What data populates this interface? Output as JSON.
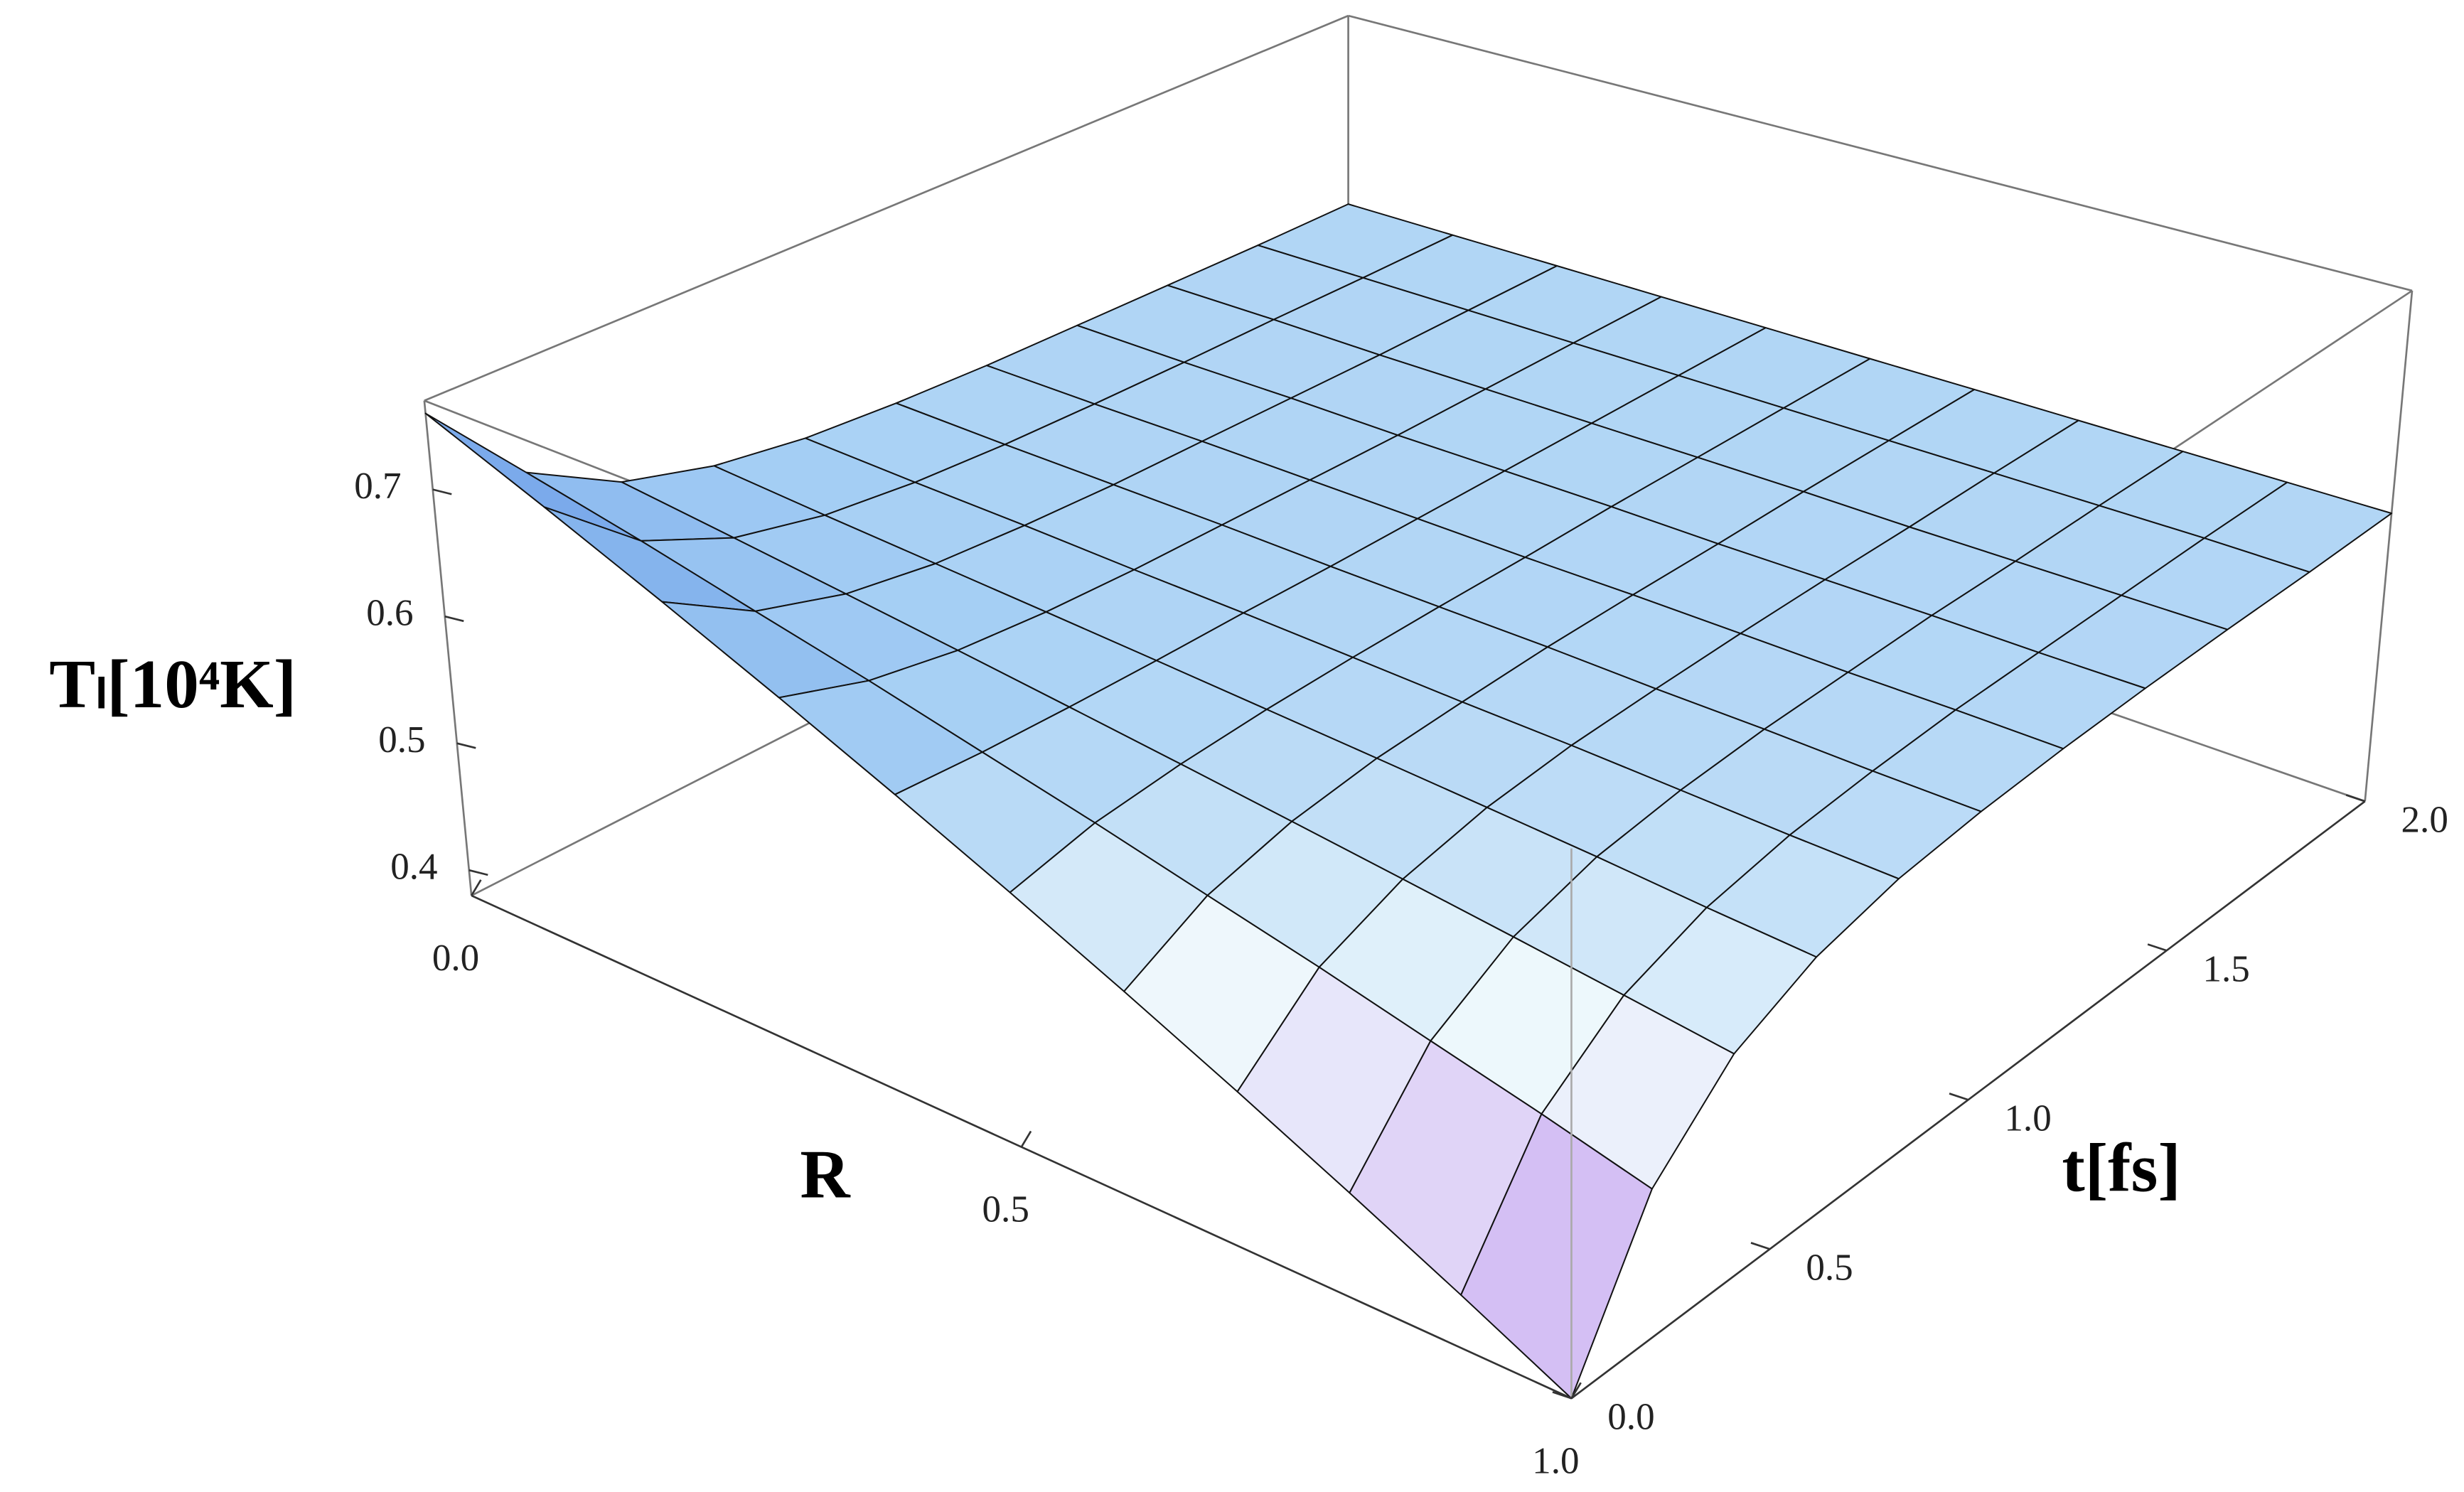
{
  "chart_data": {
    "type": "surface3d",
    "x_label": "R",
    "y_label": "t[fs]",
    "z_label": "Tₗ[10⁴K]",
    "x": [
      0,
      0.1,
      0.2,
      0.3,
      0.4,
      0.5,
      0.6,
      0.7,
      0.8,
      0.9,
      1
    ],
    "y": [
      0,
      0.2,
      0.4,
      0.6,
      0.8,
      1,
      1.2,
      1.4,
      1.6,
      1.8,
      2
    ],
    "z": [
      [
        0.76,
        0.682,
        0.642,
        0.622,
        0.611,
        0.606,
        0.603,
        0.602,
        0.601,
        0.6,
        0.6
      ],
      [
        0.722,
        0.663,
        0.632,
        0.616,
        0.608,
        0.604,
        0.602,
        0.601,
        0.601,
        0.6,
        0.6
      ],
      [
        0.684,
        0.643,
        0.622,
        0.611,
        0.606,
        0.603,
        0.602,
        0.601,
        0.6,
        0.6,
        0.6
      ],
      [
        0.646,
        0.624,
        0.612,
        0.606,
        0.603,
        0.602,
        0.601,
        0.6,
        0.6,
        0.6,
        0.6
      ],
      [
        0.608,
        0.604,
        0.602,
        0.601,
        0.601,
        0.6,
        0.6,
        0.6,
        0.6,
        0.6,
        0.6
      ],
      [
        0.57,
        0.585,
        0.592,
        0.596,
        0.598,
        0.599,
        0.599,
        0.6,
        0.6,
        0.6,
        0.6
      ],
      [
        0.532,
        0.565,
        0.582,
        0.591,
        0.595,
        0.598,
        0.599,
        0.599,
        0.6,
        0.6,
        0.6
      ],
      [
        0.494,
        0.546,
        0.572,
        0.586,
        0.593,
        0.596,
        0.598,
        0.599,
        0.599,
        0.6,
        0.6
      ],
      [
        0.456,
        0.526,
        0.562,
        0.581,
        0.59,
        0.595,
        0.597,
        0.599,
        0.599,
        0.6,
        0.6
      ],
      [
        0.418,
        0.507,
        0.552,
        0.575,
        0.587,
        0.593,
        0.597,
        0.598,
        0.599,
        0.6,
        0.6
      ],
      [
        0.38,
        0.487,
        0.542,
        0.57,
        0.585,
        0.592,
        0.596,
        0.598,
        0.599,
        0.599,
        0.6
      ]
    ],
    "xlim": [
      0,
      1
    ],
    "ylim": [
      0,
      2
    ],
    "zlim": [
      0.38,
      0.77
    ],
    "xticks": [
      {
        "value": 0,
        "label": "0.0"
      },
      {
        "value": 0.5,
        "label": "0.5"
      },
      {
        "value": 1,
        "label": "1.0"
      }
    ],
    "yticks": [
      {
        "value": 0,
        "label": "0.0"
      },
      {
        "value": 0.5,
        "label": "0.5"
      },
      {
        "value": 1,
        "label": "1.0"
      },
      {
        "value": 1.5,
        "label": "1.5"
      },
      {
        "value": 2,
        "label": "2.0"
      }
    ],
    "zticks": [
      0.4,
      0.5,
      0.6,
      0.7
    ],
    "colorscale": [
      "#9f78ea",
      "#dcc9f6",
      "#eef8fc",
      "#a4cef4",
      "#7eaeec",
      "#6d9be8"
    ]
  }
}
